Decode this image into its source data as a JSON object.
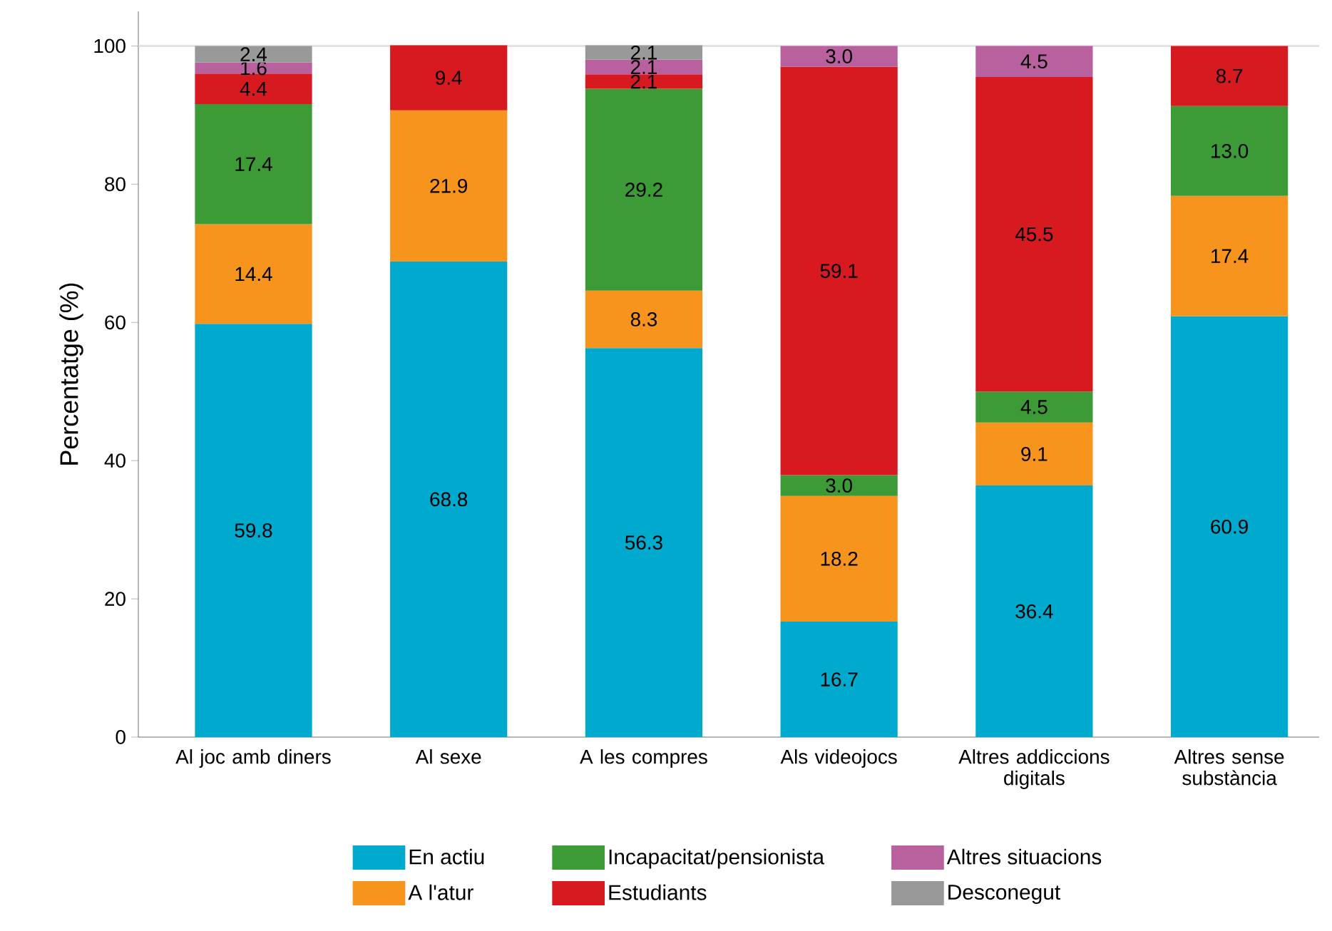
{
  "chart_data": {
    "type": "bar",
    "stacked": true,
    "ylabel": "Percentatge (%)",
    "categories": [
      "Al joc amb diners",
      "Al sexe",
      "A les compres",
      "Als videojocs",
      "Altres addiccions digitals",
      "Altres sense substància"
    ],
    "series": [
      {
        "name": "En actiu",
        "color": "#00a9ce",
        "values": [
          59.8,
          68.8,
          56.3,
          16.7,
          36.4,
          60.9
        ],
        "value_labels": [
          "59.8",
          "68.8",
          "56.3",
          "16.7",
          "36.4",
          "60.9"
        ]
      },
      {
        "name": "A l'atur",
        "color": "#f7941e",
        "values": [
          14.4,
          21.9,
          8.3,
          18.2,
          9.1,
          17.4
        ],
        "value_labels": [
          "14.4",
          "21.9",
          "8.3",
          "18.2",
          "9.1",
          "17.4"
        ]
      },
      {
        "name": "Incapacitat/pensionista",
        "color": "#3c9b36",
        "values": [
          17.4,
          null,
          29.2,
          3.0,
          4.5,
          13.0
        ],
        "value_labels": [
          "17.4",
          null,
          "29.2",
          "3.0",
          "4.5",
          "13.0"
        ]
      },
      {
        "name": "Estudiants",
        "color": "#d71920",
        "values": [
          4.4,
          9.4,
          2.1,
          59.1,
          45.5,
          8.7
        ],
        "value_labels": [
          "4.4",
          "9.4",
          "2.1",
          "59.1",
          "45.5",
          "8.7"
        ]
      },
      {
        "name": "Altres situacions",
        "color": "#b9619f",
        "values": [
          1.6,
          null,
          2.1,
          3.0,
          4.5,
          null
        ],
        "value_labels": [
          "1.6",
          null,
          "2.1",
          "3.0",
          "4.5",
          null
        ]
      },
      {
        "name": "Desconegut",
        "color": "#999999",
        "values": [
          2.4,
          null,
          2.1,
          null,
          null,
          null
        ],
        "value_labels": [
          "2.4",
          null,
          "2.1",
          null,
          null,
          null
        ]
      }
    ],
    "ylim": [
      0,
      105
    ],
    "yticks": [
      0,
      20,
      40,
      60,
      80,
      100
    ],
    "ref_lines": [
      {
        "axis": "y",
        "value": 100,
        "color": "#dddddd"
      }
    ],
    "legend": "bottom",
    "grid": false
  }
}
